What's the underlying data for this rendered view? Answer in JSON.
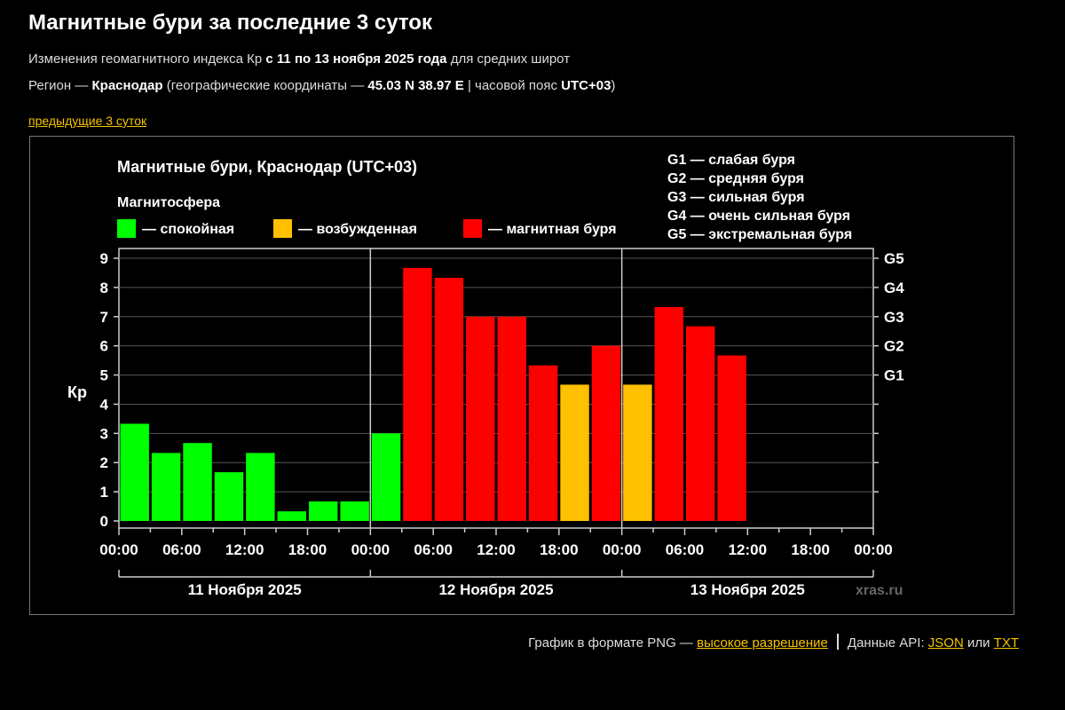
{
  "page": {
    "title": "Магнитные бури за последние 3 суток",
    "subtitle_pre": "Изменения геомагнитного индекса Кр ",
    "subtitle_bold": "с 11 по 13 ноября 2025 года",
    "subtitle_post": " для средних широт",
    "region_pre": "Регион — ",
    "region_name": "Краснодар",
    "region_mid": " (географические координаты — ",
    "region_coords": "45.03 N 38.97 E",
    "region_tz_pre": " | часовой пояс ",
    "region_tz": "UTC+03",
    "region_post": ")",
    "prev_link": "предыдущие 3 суток"
  },
  "chart_data": {
    "type": "bar",
    "title": "Магнитные бури, Краснодар (UTC+03)",
    "legend_title": "Магнитосфера",
    "legend": [
      {
        "label": "— спокойная",
        "color": "#00ff00"
      },
      {
        "label": "— возбужденная",
        "color": "#ffc000"
      },
      {
        "label": "— магнитная буря",
        "color": "#ff0000"
      }
    ],
    "g_scale_legend": [
      "G1 — слабая буря",
      "G2 — средняя буря",
      "G3 — сильная буря",
      "G4 — очень сильная буря",
      "G5 — экстремальная буря"
    ],
    "ylabel": "Кр",
    "ylim": [
      0,
      9
    ],
    "yticks": [
      "0",
      "1",
      "2",
      "3",
      "4",
      "5",
      "6",
      "7",
      "8",
      "9"
    ],
    "right_ticks": [
      {
        "value": 5,
        "label": "G1"
      },
      {
        "value": 6,
        "label": "G2"
      },
      {
        "value": 7,
        "label": "G3"
      },
      {
        "value": 8,
        "label": "G4"
      },
      {
        "value": 9,
        "label": "G5"
      }
    ],
    "xticks": [
      "00:00",
      "06:00",
      "12:00",
      "18:00",
      "00:00",
      "06:00",
      "12:00",
      "18:00",
      "00:00",
      "06:00",
      "12:00",
      "18:00",
      "00:00"
    ],
    "days": [
      "11 Ноября 2025",
      "12 Ноября 2025",
      "13 Ноября 2025"
    ],
    "bar_hours": 3,
    "values": [
      3.33,
      2.33,
      2.67,
      1.67,
      2.33,
      0.33,
      0.67,
      0.67,
      3.0,
      8.67,
      8.33,
      7.0,
      7.0,
      5.33,
      4.67,
      6.0,
      4.67,
      7.33,
      6.67,
      5.67
    ],
    "levels": [
      "quiet",
      "quiet",
      "quiet",
      "quiet",
      "quiet",
      "quiet",
      "quiet",
      "quiet",
      "quiet",
      "storm",
      "storm",
      "storm",
      "storm",
      "storm",
      "active",
      "storm",
      "active",
      "storm",
      "storm",
      "storm"
    ],
    "level_colors": {
      "quiet": "#00ff00",
      "active": "#ffc000",
      "storm": "#ff0000"
    },
    "watermark": "xras.ru",
    "grid": true
  },
  "footer": {
    "png_text": "График в формате PNG — ",
    "png_link": "высокое разрешение",
    "api_text": "Данные API: ",
    "json_link": "JSON",
    "or_text": " или ",
    "txt_link": "TXT"
  }
}
